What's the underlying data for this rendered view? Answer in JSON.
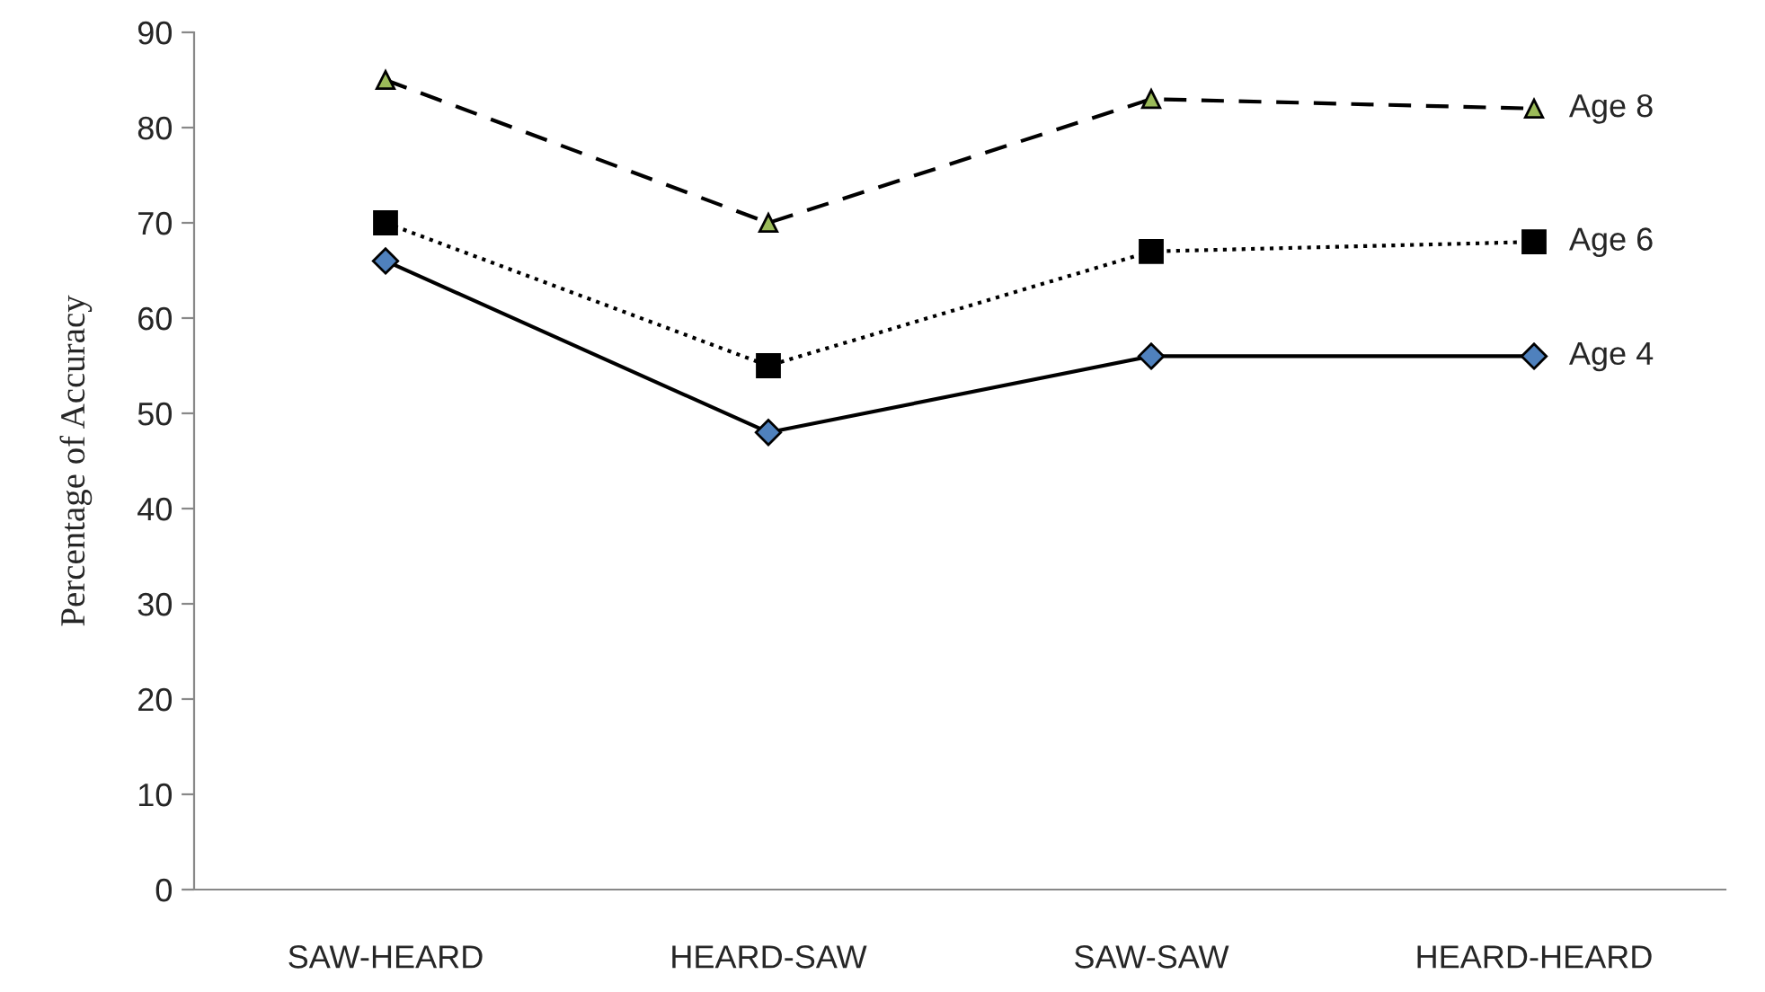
{
  "chart_data": {
    "type": "line",
    "ylabel": "Percentage of Accuracy",
    "categories": [
      "SAW-HEARD",
      "HEARD-SAW",
      "SAW-SAW",
      "HEARD-HEARD"
    ],
    "series": [
      {
        "name": "Age 8",
        "color": "#9bbb59",
        "values": [
          85,
          70,
          83,
          82
        ],
        "marker": "triangle",
        "line_style": "dashed"
      },
      {
        "name": "Age 6",
        "color": "#000000",
        "values": [
          70,
          55,
          67,
          68
        ],
        "marker": "square",
        "line_style": "dotted"
      },
      {
        "name": "Age 4",
        "color": "#4f81bd",
        "values": [
          66,
          48,
          56,
          56
        ],
        "marker": "diamond",
        "line_style": "solid"
      }
    ],
    "ylim": [
      0,
      90
    ],
    "yticks": [
      0,
      10,
      20,
      30,
      40,
      50,
      60,
      70,
      80,
      90
    ],
    "grid": false,
    "legend": false
  }
}
